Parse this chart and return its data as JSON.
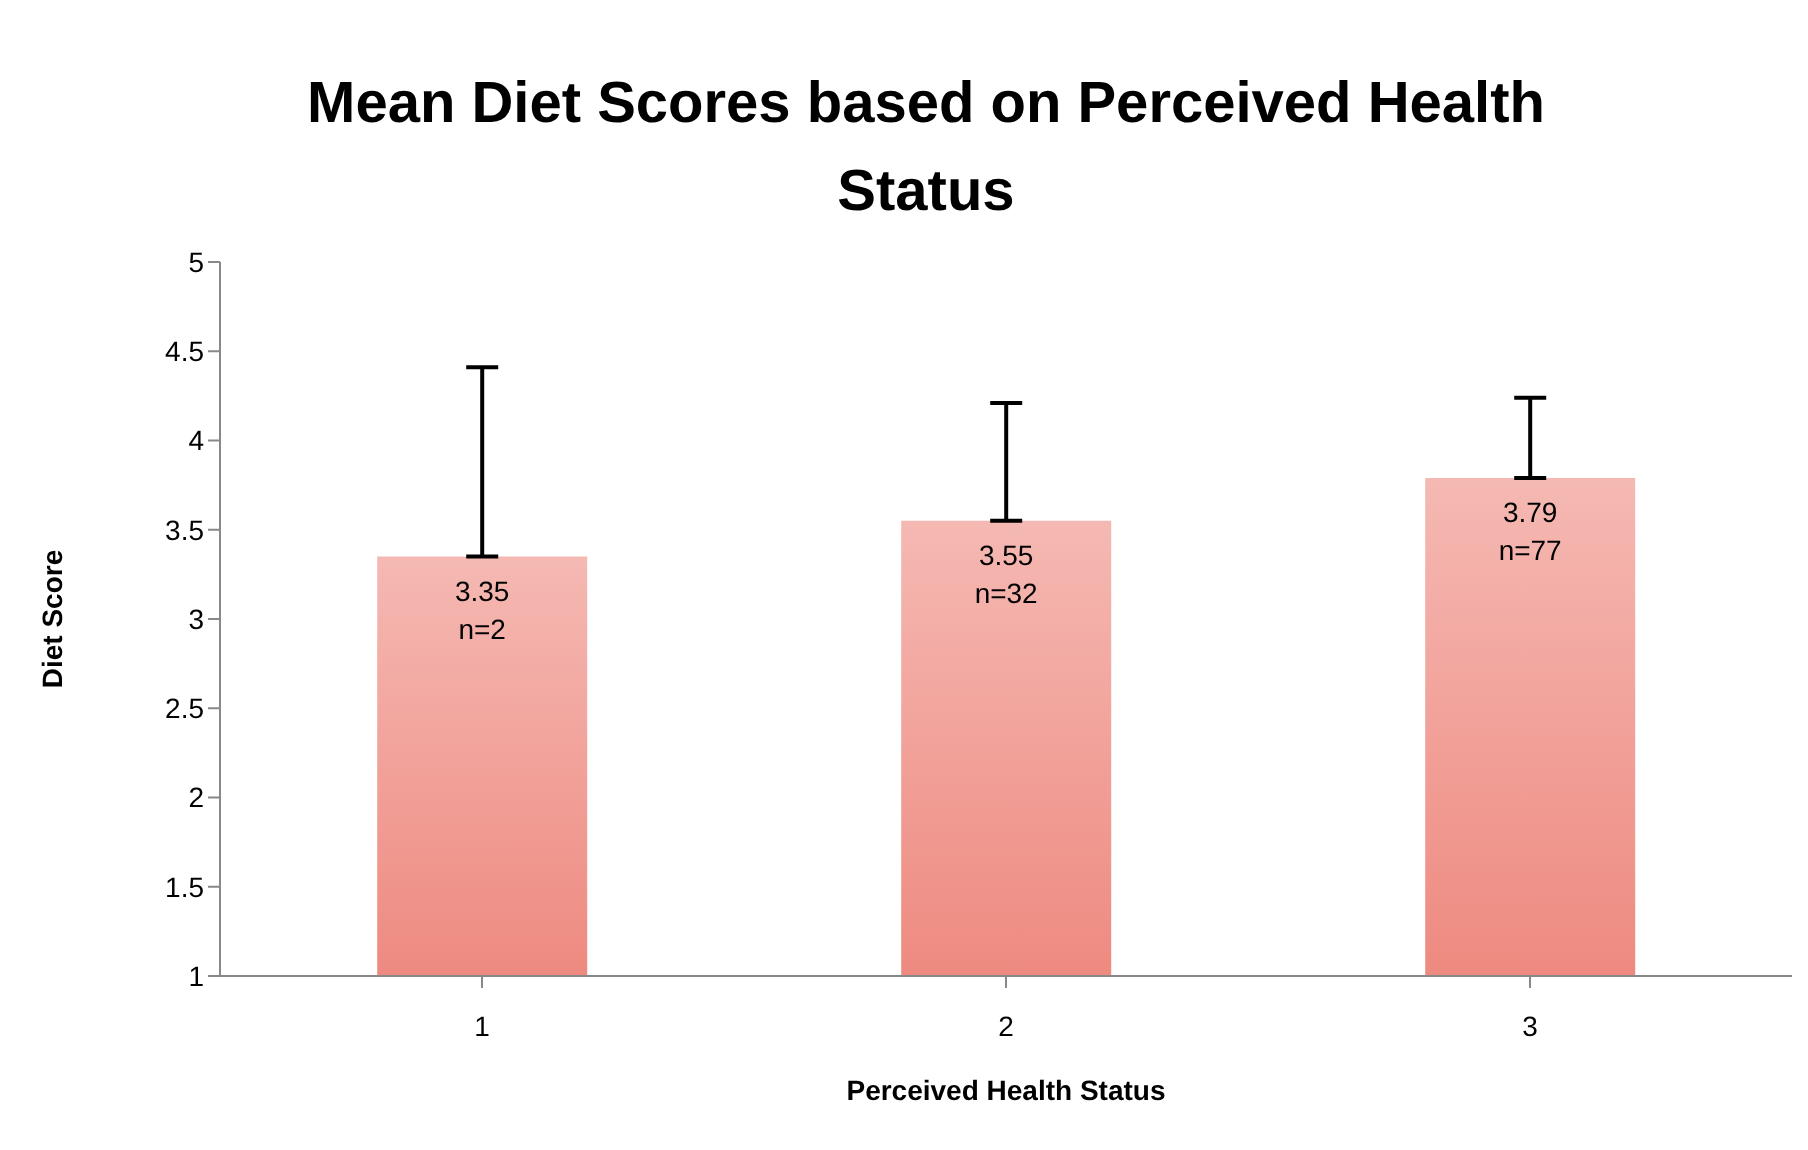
{
  "chart_data": {
    "type": "bar",
    "title": "Mean Diet Scores based on Perceived Health Status",
    "xlabel": "Perceived Health Status",
    "ylabel": "Diet Score",
    "categories": [
      "1",
      "2",
      "3"
    ],
    "values": [
      3.35,
      3.55,
      3.79
    ],
    "errors": [
      [
        3.35,
        4.41
      ],
      [
        3.55,
        4.21
      ],
      [
        3.79,
        4.24
      ]
    ],
    "value_labels": [
      "3.35\nn=2",
      "3.55\nn=32",
      "3.79\nn=77"
    ],
    "color": "#ee8a80",
    "ylim": [
      1,
      5
    ],
    "yticks": [
      1,
      1.5,
      2,
      2.5,
      3,
      3.5,
      4,
      4.5,
      5
    ],
    "grid": false
  }
}
